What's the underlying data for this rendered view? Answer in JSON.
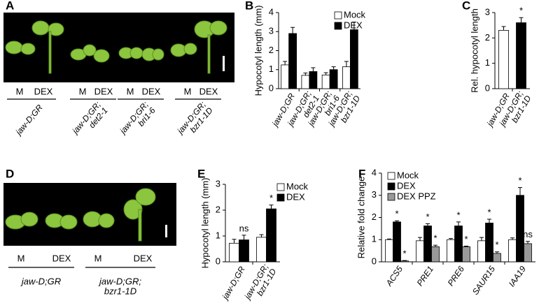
{
  "chart_data": [
    {
      "type": "bar",
      "panel": "B",
      "ylabel": "Hypocotyl length (mm)",
      "categories": [
        [
          "jaw-D;GR"
        ],
        [
          "jaw-D;GR;",
          "det2-1"
        ],
        [
          "jaw-D;GR;",
          "bri1-6"
        ],
        [
          "jaw-D;GR;",
          "bzr1-1D"
        ]
      ],
      "series": [
        {
          "name": "Mock",
          "color": "#ffffff",
          "values": [
            1.25,
            0.7,
            0.72,
            1.15
          ],
          "errors": [
            0.18,
            0.12,
            0.12,
            0.28
          ]
        },
        {
          "name": "DEX",
          "color": "#000000",
          "values": [
            2.9,
            0.9,
            1.0,
            3.1
          ],
          "errors": [
            0.32,
            0.2,
            0.15,
            0.4
          ]
        }
      ],
      "ylim": [
        0,
        4
      ],
      "yticks": [
        0,
        1,
        2,
        3,
        4
      ],
      "legend": "upper right"
    },
    {
      "type": "bar",
      "panel": "C",
      "ylabel": "Rel. hypocotyl length",
      "categories": [
        [
          "jaw-D;GR"
        ],
        [
          "jaw-D;GR;",
          "bzr1-1D"
        ]
      ],
      "values": [
        2.3,
        2.6
      ],
      "errors": [
        0.15,
        0.2
      ],
      "colors": [
        "#ffffff",
        "#000000"
      ],
      "annotations": [
        null,
        "*"
      ],
      "ylim": [
        0,
        3
      ],
      "yticks": [
        0,
        1,
        2,
        3
      ]
    },
    {
      "type": "bar",
      "panel": "E",
      "ylabel": "Hypocotyl length (mm)",
      "categories": [
        [
          "jaw-D;GR"
        ],
        [
          "jaw-D;GR;",
          "bzr1-1D"
        ]
      ],
      "series": [
        {
          "name": "Mock",
          "color": "#ffffff",
          "values": [
            0.72,
            0.95
          ],
          "errors": [
            0.15,
            0.1
          ]
        },
        {
          "name": "DEX",
          "color": "#000000",
          "values": [
            0.85,
            2.05
          ],
          "errors": [
            0.18,
            0.15
          ],
          "annotations": [
            "ns",
            "*"
          ]
        }
      ],
      "ylim": [
        0,
        3
      ],
      "yticks": [
        0,
        1,
        2,
        3
      ],
      "legend": "upper right"
    },
    {
      "type": "bar",
      "panel": "F",
      "ylabel": "Relative fold change",
      "categories": [
        [
          "ACS5"
        ],
        [
          "PRE1"
        ],
        [
          "PRE6"
        ],
        [
          "SAUR15"
        ],
        [
          "IAA19"
        ]
      ],
      "series": [
        {
          "name": "Mock",
          "color": "#ffffff",
          "values": [
            1.0,
            0.95,
            1.0,
            0.95,
            1.0
          ],
          "errors": [
            0.03,
            0.15,
            0.05,
            0.15,
            0.08
          ]
        },
        {
          "name": "DEX",
          "color": "#000000",
          "values": [
            1.8,
            1.62,
            1.62,
            1.75,
            3.0
          ],
          "errors": [
            0.05,
            0.1,
            0.18,
            0.17,
            0.35
          ],
          "annotations": [
            "*",
            "*",
            "*",
            "*",
            "*"
          ]
        },
        {
          "name": "DEX PPZ",
          "color": "#999999",
          "values": [
            0.04,
            0.68,
            0.68,
            0.38,
            0.82
          ],
          "errors": [
            0.02,
            0.07,
            0.03,
            0.07,
            0.1
          ],
          "annotations": [
            "*",
            "*",
            "*",
            "*",
            "ns"
          ]
        }
      ],
      "ylim": [
        0,
        4
      ],
      "yticks": [
        0,
        1,
        2,
        3,
        4
      ],
      "legend": "upper left"
    }
  ],
  "photos": [
    {
      "panel": "A",
      "treatments": [
        "M",
        "DEX",
        "M",
        "DEX",
        "M",
        "DEX",
        "M",
        "DEX"
      ],
      "genotypes": [
        [
          "jaw-D;GR"
        ],
        [
          "jaw-D;GR;",
          "det2-1"
        ],
        [
          "jaw-D;GR;",
          "bri1-6"
        ],
        [
          "jaw-D;GR;",
          "bzr1-1D"
        ]
      ]
    },
    {
      "panel": "D",
      "treatments": [
        "M",
        "DEX",
        "M",
        "DEX"
      ],
      "genotypes": [
        [
          "jaw-D;GR"
        ],
        [
          "jaw-D;GR;",
          "bzr1-1D"
        ]
      ]
    }
  ]
}
